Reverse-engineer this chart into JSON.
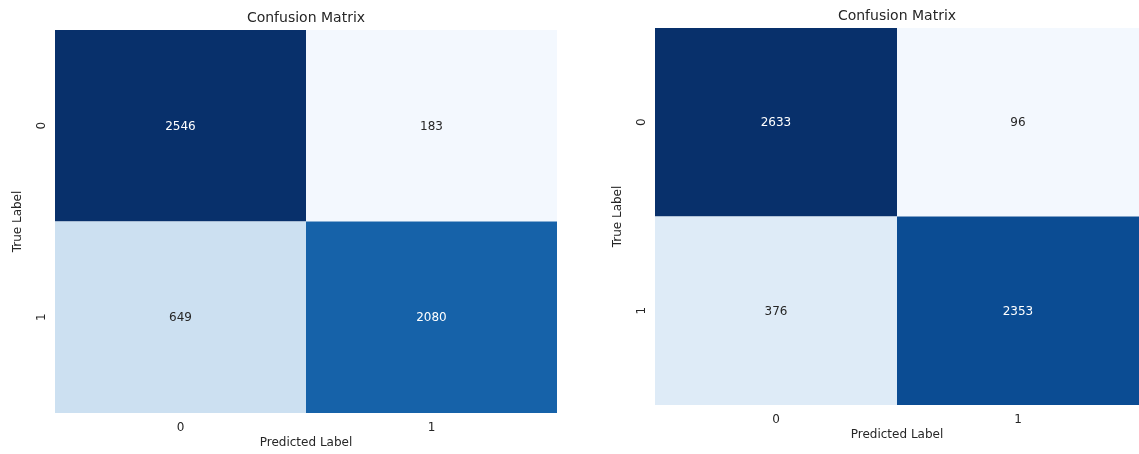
{
  "chart_data": [
    {
      "type": "heatmap",
      "title": "Confusion Matrix",
      "xlabel": "Predicted Label",
      "ylabel": "True Label",
      "categories": [
        "0",
        "1"
      ],
      "y_categories": [
        "0",
        "1"
      ],
      "cells": [
        [
          2546,
          183
        ],
        [
          649,
          2080
        ]
      ],
      "data_labels": true,
      "grid": false
    },
    {
      "type": "heatmap",
      "title": "Confusion Matrix",
      "xlabel": "Predicted Label",
      "ylabel": "True Label",
      "categories": [
        "0",
        "1"
      ],
      "y_categories": [
        "0",
        "1"
      ],
      "cells": [
        [
          2633,
          96
        ],
        [
          376,
          2353
        ]
      ],
      "data_labels": true,
      "grid": false
    }
  ]
}
